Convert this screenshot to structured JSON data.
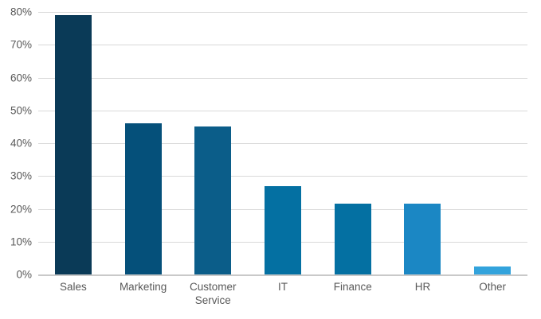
{
  "chart_data": {
    "type": "bar",
    "title": "",
    "xlabel": "",
    "ylabel": "",
    "categories": [
      "Sales",
      "Marketing",
      "Customer Service",
      "IT",
      "Finance",
      "HR",
      "Other"
    ],
    "values": [
      79,
      46,
      45,
      27,
      21.5,
      21.5,
      2.5
    ],
    "bar_colors": [
      "#0a3a57",
      "#05507a",
      "#0b5d89",
      "#0470a2",
      "#0470a2",
      "#1b87c4",
      "#33a3dc"
    ],
    "ylim": [
      0,
      80
    ],
    "y_tick_interval": 10,
    "y_tick_labels": [
      "0%",
      "10%",
      "20%",
      "30%",
      "40%",
      "50%",
      "60%",
      "70%",
      "80%"
    ],
    "grid": true,
    "legend": "none",
    "colors": {
      "gridline": "#d9d9d9",
      "axis_line": "#c9c9c9",
      "tick_label": "#595959",
      "background": "#ffffff"
    }
  }
}
